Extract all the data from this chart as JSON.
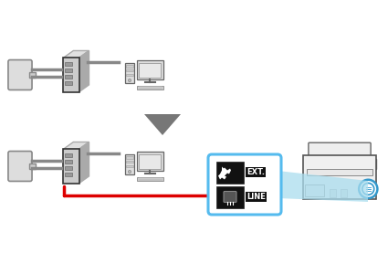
{
  "bg_color": "#ffffff",
  "red_line_color": "#dd0000",
  "box_highlight_border": "#55bbee",
  "beam_color": "#aaddee",
  "arrow_fill": "#777777",
  "gray_line": "#888888",
  "dark_line": "#333333",
  "ext_label": "EXT.",
  "line_label": "LINE",
  "wall_face": "#dddddd",
  "wall_edge": "#888888",
  "modem_front": "#cccccc",
  "modem_top": "#e0e0e0",
  "modem_side": "#aaaaaa",
  "printer_face": "#f0f0f0",
  "printer_edge": "#555555",
  "port_circle_color": "#3399cc"
}
